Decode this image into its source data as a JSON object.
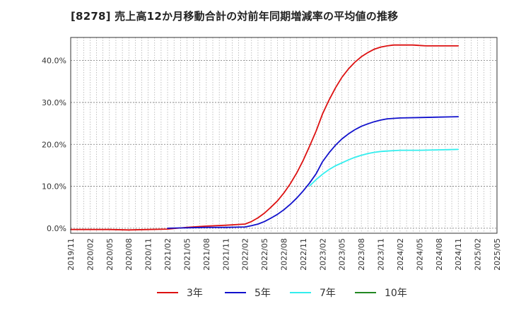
{
  "chart_data": {
    "type": "line",
    "title": "[8278]  売上高12か月移動合計の対前年同期増減率の平均値の推移",
    "xlabel": "",
    "ylabel": "",
    "ylim": [
      -1.2,
      45.5
    ],
    "x_ticks": [
      "2019/11",
      "2020/02",
      "2020/05",
      "2020/08",
      "2020/11",
      "2021/02",
      "2021/05",
      "2021/08",
      "2021/11",
      "2022/02",
      "2022/05",
      "2022/08",
      "2022/11",
      "2023/02",
      "2023/05",
      "2023/08",
      "2023/11",
      "2024/02",
      "2024/05",
      "2024/08",
      "2024/11",
      "2025/02",
      "2025/05"
    ],
    "y_ticks": [
      0,
      10,
      20,
      30,
      40
    ],
    "y_tick_labels": [
      "0.0%",
      "10.0%",
      "20.0%",
      "30.0%",
      "40.0%"
    ],
    "grid": true,
    "legend_position": "bottom",
    "series": [
      {
        "name": "3年",
        "color": "#dd1111",
        "x": [
          "2019/11",
          "2020/02",
          "2020/05",
          "2020/08",
          "2020/11",
          "2021/02",
          "2021/05",
          "2021/08",
          "2021/11",
          "2022/02",
          "2022/03",
          "2022/04",
          "2022/05",
          "2022/06",
          "2022/07",
          "2022/08",
          "2022/09",
          "2022/10",
          "2022/11",
          "2022/12",
          "2023/01",
          "2023/02",
          "2023/03",
          "2023/04",
          "2023/05",
          "2023/06",
          "2023/07",
          "2023/08",
          "2023/09",
          "2023/10",
          "2023/11",
          "2023/12",
          "2024/01",
          "2024/02",
          "2024/03",
          "2024/04",
          "2024/05",
          "2024/06",
          "2024/07",
          "2024/08",
          "2024/09",
          "2024/10",
          "2024/11"
        ],
        "values": [
          -0.3,
          -0.3,
          -0.3,
          -0.4,
          -0.3,
          -0.2,
          0.2,
          0.5,
          0.7,
          1.0,
          1.6,
          2.5,
          3.6,
          5.0,
          6.5,
          8.4,
          10.6,
          13.2,
          16.2,
          19.6,
          23.2,
          27.3,
          30.6,
          33.5,
          36.0,
          38.0,
          39.6,
          40.9,
          41.9,
          42.7,
          43.2,
          43.5,
          43.7,
          43.7,
          43.7,
          43.7,
          43.6,
          43.5,
          43.5,
          43.5,
          43.5,
          43.5,
          43.5
        ]
      },
      {
        "name": "5年",
        "color": "#1111cc",
        "x": [
          "2021/02",
          "2021/05",
          "2021/08",
          "2021/11",
          "2022/02",
          "2022/03",
          "2022/04",
          "2022/05",
          "2022/06",
          "2022/07",
          "2022/08",
          "2022/09",
          "2022/10",
          "2022/11",
          "2022/12",
          "2023/01",
          "2023/02",
          "2023/03",
          "2023/04",
          "2023/05",
          "2023/06",
          "2023/07",
          "2023/08",
          "2023/09",
          "2023/10",
          "2023/11",
          "2023/12",
          "2024/01",
          "2024/02",
          "2024/05",
          "2024/08",
          "2024/11"
        ],
        "values": [
          0.0,
          0.1,
          0.2,
          0.2,
          0.3,
          0.6,
          1.0,
          1.6,
          2.4,
          3.3,
          4.4,
          5.7,
          7.2,
          8.9,
          10.8,
          13.0,
          15.9,
          18.0,
          19.8,
          21.3,
          22.5,
          23.5,
          24.3,
          24.9,
          25.4,
          25.8,
          26.1,
          26.2,
          26.3,
          26.4,
          26.5,
          26.6
        ]
      },
      {
        "name": "7年",
        "color": "#33eeee",
        "x": [
          "2022/12",
          "2023/01",
          "2023/02",
          "2023/03",
          "2023/04",
          "2023/05",
          "2023/06",
          "2023/07",
          "2023/08",
          "2023/09",
          "2023/10",
          "2023/11",
          "2023/12",
          "2024/01",
          "2024/02",
          "2024/05",
          "2024/08",
          "2024/11"
        ],
        "values": [
          10.1,
          11.6,
          12.9,
          14.0,
          14.9,
          15.6,
          16.3,
          16.9,
          17.4,
          17.8,
          18.1,
          18.3,
          18.4,
          18.5,
          18.6,
          18.6,
          18.7,
          18.8
        ]
      },
      {
        "name": "10年",
        "color": "#228822",
        "x": [],
        "values": []
      }
    ]
  }
}
